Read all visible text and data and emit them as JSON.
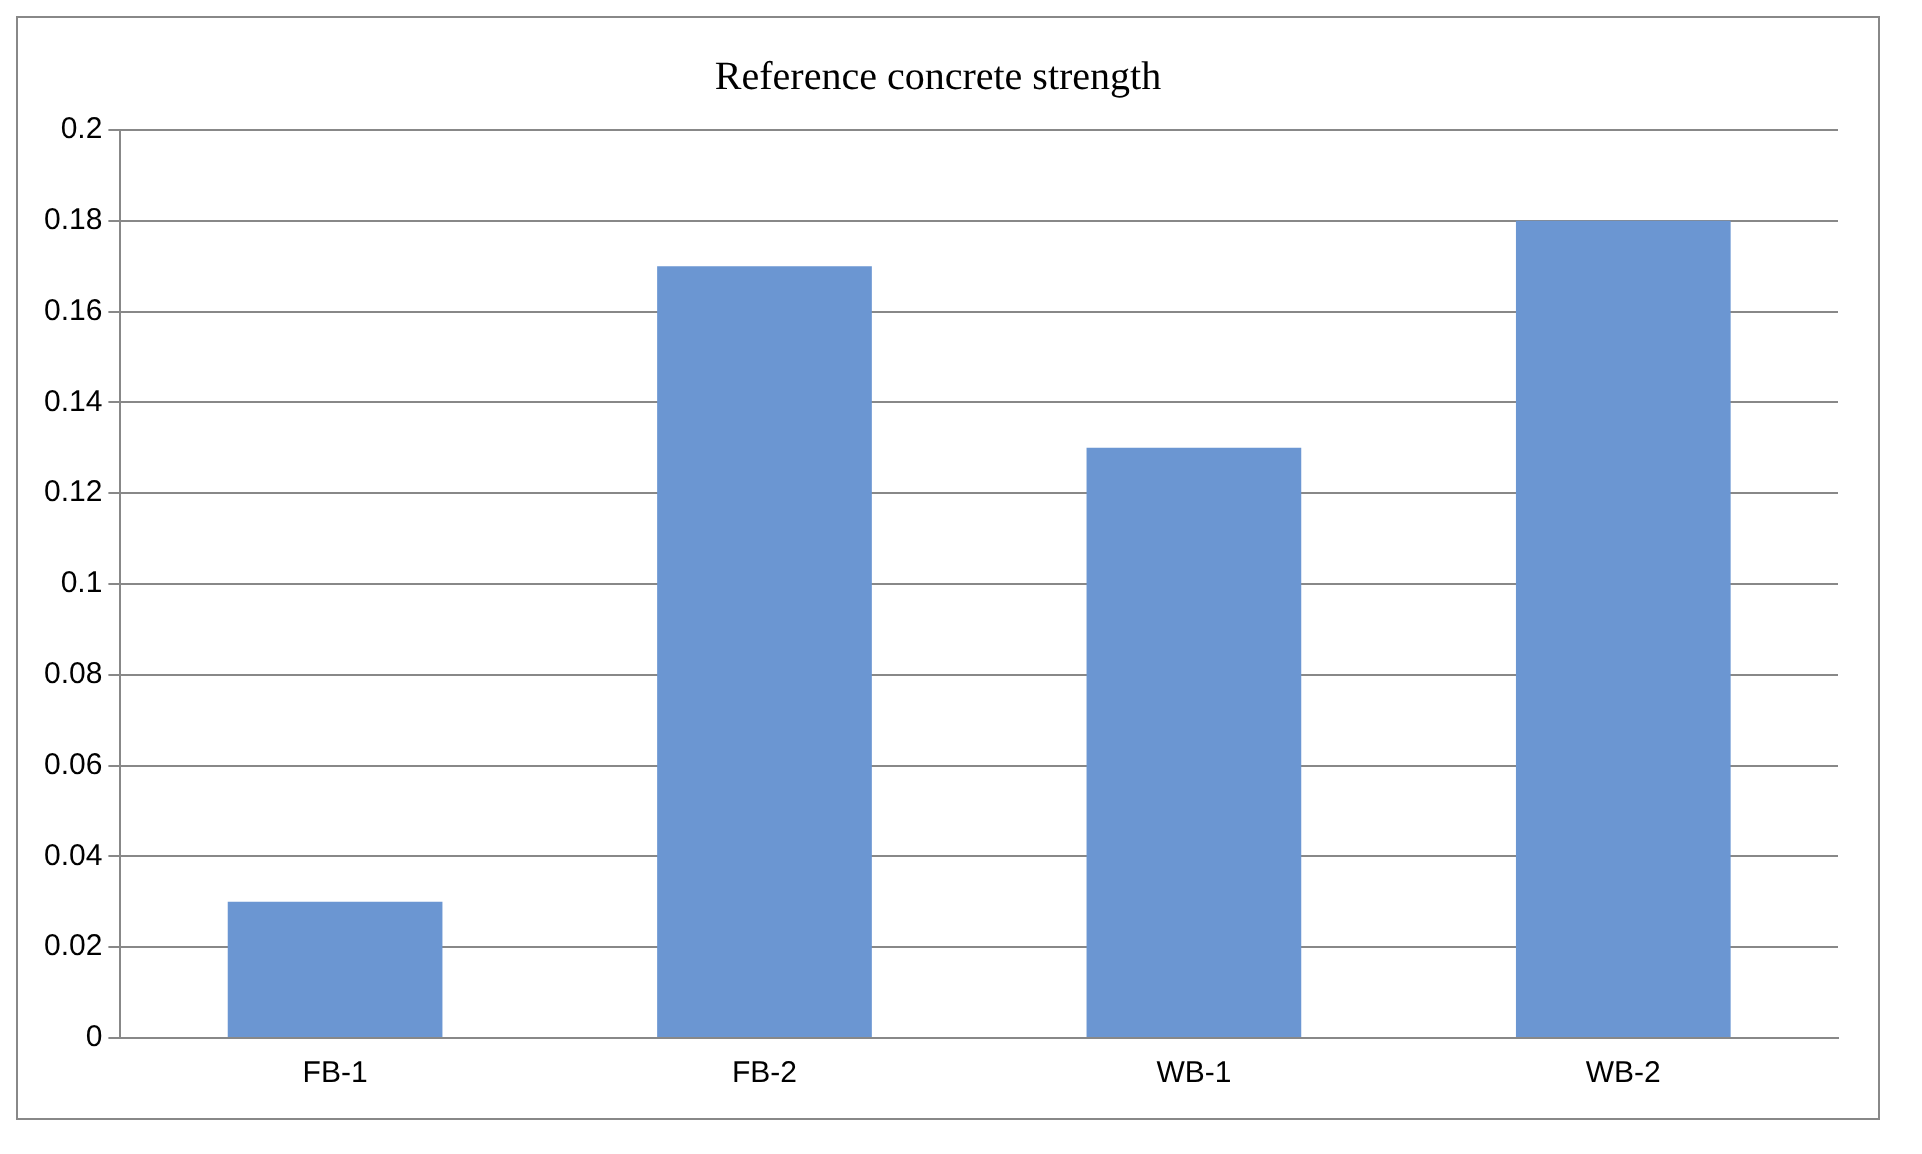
{
  "chart_data": {
    "type": "bar",
    "title": "Reference concrete strength",
    "categories": [
      "FB-1",
      "FB-2",
      "WB-1",
      "WB-2"
    ],
    "values": [
      0.03,
      0.17,
      0.13,
      0.18
    ],
    "color": "#6b96d2",
    "ylim": [
      0,
      0.2
    ],
    "yticks": [
      0,
      0.02,
      0.04,
      0.06,
      0.08,
      0.1,
      0.12,
      0.14,
      0.16,
      0.18,
      0.2
    ],
    "grid": "y",
    "legend": false
  }
}
